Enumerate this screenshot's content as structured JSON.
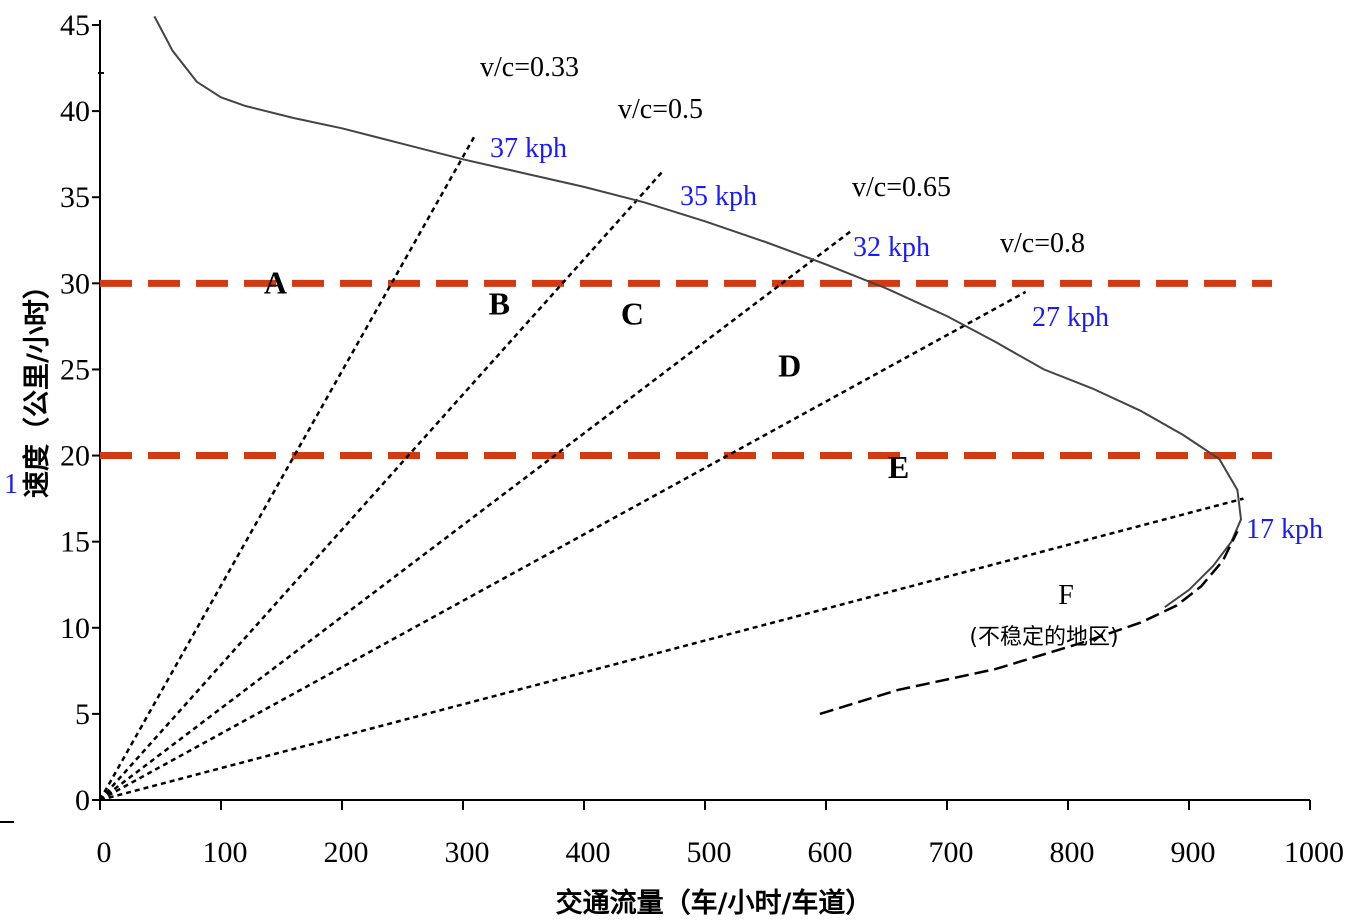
{
  "chart_data": {
    "type": "line",
    "xlabel": "交通流量（车/小时/车道）",
    "ylabel": "速度（公里/小时）",
    "xlim": [
      0,
      1000
    ],
    "ylim": [
      0,
      45
    ],
    "x_ticks": [
      "0",
      "100",
      "200",
      "300",
      "400",
      "500",
      "600",
      "700",
      "800",
      "900",
      "1000"
    ],
    "y_ticks": [
      "0",
      "5",
      "10",
      "15",
      "20",
      "25",
      "30",
      "35",
      "40",
      "45"
    ],
    "speed_flow_curve": {
      "x": [
        45,
        60,
        80,
        100,
        120,
        160,
        200,
        250,
        300,
        350,
        400,
        450,
        500,
        550,
        600,
        650,
        700,
        740,
        780,
        820,
        860,
        895,
        925,
        940,
        943,
        935,
        920,
        900,
        880
      ],
      "y": [
        45.5,
        43.5,
        41.7,
        40.8,
        40.3,
        39.6,
        39.0,
        38.1,
        37.2,
        36.4,
        35.6,
        34.7,
        33.6,
        32.4,
        31.1,
        29.7,
        28.1,
        26.6,
        25.0,
        23.9,
        22.6,
        21.2,
        19.8,
        18.0,
        16.3,
        15.0,
        13.6,
        12.2,
        11.2
      ]
    },
    "unstable_branch": {
      "x": [
        595,
        660,
        740,
        810,
        860,
        890,
        910,
        928,
        940
      ],
      "y": [
        5.0,
        6.4,
        7.6,
        9.1,
        10.3,
        11.3,
        12.4,
        13.9,
        15.6
      ]
    },
    "vc_lines": [
      {
        "label": "v/c=0.33",
        "speed_label": "37 kph",
        "end": [
          310,
          38.6
        ]
      },
      {
        "label": "v/c=0.5",
        "speed_label": "35 kph",
        "end": [
          465,
          36.5
        ]
      },
      {
        "label": "v/c=0.65",
        "speed_label": "32 kph",
        "end": [
          620,
          33.0
        ]
      },
      {
        "label": "v/c=0.8",
        "speed_label": "27 kph",
        "end": [
          765,
          29.5
        ]
      },
      {
        "speed_label": "17 kph",
        "end": [
          945,
          17.5
        ]
      }
    ],
    "threshold_lines": [
      30,
      20
    ],
    "los_labels": [
      {
        "label": "A",
        "x": 145,
        "y": 29.4
      },
      {
        "label": "B",
        "x": 330,
        "y": 28.2
      },
      {
        "label": "C",
        "x": 440,
        "y": 27.6
      },
      {
        "label": "D",
        "x": 570,
        "y": 24.6
      },
      {
        "label": "E",
        "x": 660,
        "y": 18.7
      }
    ],
    "f_label": {
      "label": "F",
      "note": "(不稳定的地区)"
    },
    "stray_text": "1",
    "colors": {
      "threshold": "#d23a14",
      "speed_label": "#1a1aff",
      "curve": "#444444"
    }
  }
}
